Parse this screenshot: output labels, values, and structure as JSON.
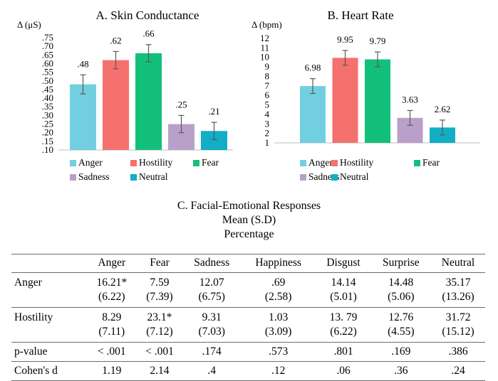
{
  "colors": {
    "Anger": "#72cfe0",
    "Hostility": "#f5716e",
    "Fear": "#13c07a",
    "Sadness": "#b9a0c9",
    "Neutral": "#11aec5",
    "axis": "#bfbfbf",
    "error_bar": "#595959"
  },
  "chart_data": [
    {
      "type": "bar",
      "title": "A. Skin Conductance",
      "ylabel": "Δ (μS)",
      "categories": [
        "Anger",
        "Hostility",
        "Fear",
        "Sadness",
        "Neutral"
      ],
      "values": [
        0.48,
        0.62,
        0.66,
        0.25,
        0.21
      ],
      "value_labels": [
        ".48",
        ".62",
        ".66",
        ".25",
        ".21"
      ],
      "error": [
        0.055,
        0.05,
        0.05,
        0.05,
        0.05
      ],
      "ylim": [
        0.1,
        0.75
      ],
      "yticks": [
        0.75,
        0.7,
        0.65,
        0.6,
        0.55,
        0.5,
        0.45,
        0.4,
        0.35,
        0.3,
        0.25,
        0.2,
        0.15,
        0.1
      ],
      "ytick_labels": [
        ".75",
        ".70",
        ".65",
        ".60",
        ".55",
        ".50",
        ".45",
        ".40",
        ".35",
        ".30",
        ".25",
        ".20",
        ".15",
        ".10"
      ],
      "grid": false,
      "legend": [
        "Anger",
        "Hostility",
        "Fear",
        "Sadness",
        "Neutral"
      ],
      "legend_position": "bottom"
    },
    {
      "type": "bar",
      "title": "B. Heart Rate",
      "ylabel": "Δ (bpm)",
      "categories": [
        "Anger",
        "Hostility",
        "Fear",
        "Sadness",
        "Neutral"
      ],
      "values": [
        6.98,
        9.95,
        9.79,
        3.63,
        2.62
      ],
      "value_labels": [
        "6.98",
        "9.95",
        "9.79",
        "3.63",
        "2.62"
      ],
      "error": [
        0.78,
        0.78,
        0.78,
        0.78,
        0.78
      ],
      "ylim": [
        1,
        12
      ],
      "yticks": [
        12,
        11,
        10,
        9,
        8,
        7,
        6,
        5,
        4,
        3,
        2,
        1
      ],
      "ytick_labels": [
        "12",
        "11",
        "10",
        "9",
        "8",
        "7",
        "6",
        "5",
        "4",
        "3",
        "2",
        "1"
      ],
      "grid": false,
      "legend": [
        "Anger",
        "Hostility",
        "Fear",
        "Sadness",
        "Neutral"
      ],
      "legend_position": "bottom"
    },
    {
      "type": "table",
      "title": [
        "C. Facial-Emotional Responses",
        "Mean (S.D)",
        "Percentage"
      ],
      "columns": [
        "",
        "Anger",
        "Fear",
        "Sadness",
        "Happiness",
        "Disgust",
        "Surprise",
        "Neutral"
      ],
      "rows": [
        {
          "label": "Anger",
          "cells": [
            [
              "16.21*",
              "(6.22)"
            ],
            [
              "7.59",
              "(7.39)"
            ],
            [
              "12.07",
              "(6.75)"
            ],
            [
              ".69",
              "(2.58)"
            ],
            [
              "14.14",
              "(5.01)"
            ],
            [
              "14.48",
              "(5.06)"
            ],
            [
              "35.17",
              "(13.26)"
            ]
          ]
        },
        {
          "label": "Hostility",
          "cells": [
            [
              "8.29",
              "(7.11)"
            ],
            [
              "23.1*",
              "(7.12)"
            ],
            [
              "9.31",
              "(7.03)"
            ],
            [
              "1.03",
              "(3.09)"
            ],
            [
              "13. 79",
              "(6.22)"
            ],
            [
              "12.76",
              "(4.55)"
            ],
            [
              "31.72",
              "(15.12)"
            ]
          ]
        },
        {
          "label": "p-value",
          "cells": [
            [
              "< .001"
            ],
            [
              "< .001"
            ],
            [
              ".174"
            ],
            [
              ".573"
            ],
            [
              ".801"
            ],
            [
              ".169"
            ],
            [
              ".386"
            ]
          ]
        },
        {
          "label": "Cohen's d",
          "cells": [
            [
              "1.19"
            ],
            [
              "2.14"
            ],
            [
              ".4"
            ],
            [
              ".12"
            ],
            [
              ".06"
            ],
            [
              ".36"
            ],
            [
              ".24"
            ]
          ]
        }
      ]
    }
  ]
}
